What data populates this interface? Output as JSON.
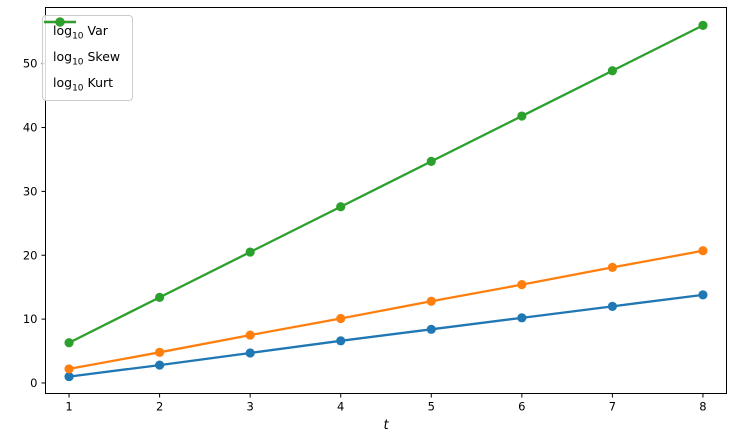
{
  "figure": {
    "background": "#ffffff"
  },
  "chart_data": {
    "type": "line",
    "title": "",
    "xlabel": "t",
    "ylabel": "",
    "x": [
      1,
      2,
      3,
      4,
      5,
      6,
      7,
      8
    ],
    "series": [
      {
        "name": "log10 Var",
        "label_prefix": "log",
        "label_sub": "10",
        "label_rest": "Var",
        "color": "#1f77b4",
        "values": [
          1.0,
          2.8,
          4.7,
          6.6,
          8.4,
          10.2,
          12.0,
          13.8
        ]
      },
      {
        "name": "log10 Skew",
        "label_prefix": "log",
        "label_sub": "10",
        "label_rest": "Skew",
        "color": "#ff7f0e",
        "values": [
          2.2,
          4.8,
          7.5,
          10.1,
          12.8,
          15.4,
          18.1,
          20.7
        ]
      },
      {
        "name": "log10 Kurt",
        "label_prefix": "log",
        "label_sub": "10",
        "label_rest": "Kurt",
        "color": "#2ca02c",
        "values": [
          6.3,
          13.4,
          20.5,
          27.6,
          34.7,
          41.8,
          48.9,
          56.0
        ]
      }
    ],
    "x_ticks": [
      1,
      2,
      3,
      4,
      5,
      6,
      7,
      8
    ],
    "y_ticks": [
      0,
      10,
      20,
      30,
      40,
      50
    ],
    "xlim": [
      0.74,
      8.26
    ],
    "ylim": [
      -1.65,
      58.8
    ],
    "grid": false,
    "legend_position": "upper left",
    "marker": "circle",
    "line_width": 2.3,
    "marker_radius": 4.6,
    "axis_color": "#000000",
    "tick_label_color": "#000000"
  }
}
